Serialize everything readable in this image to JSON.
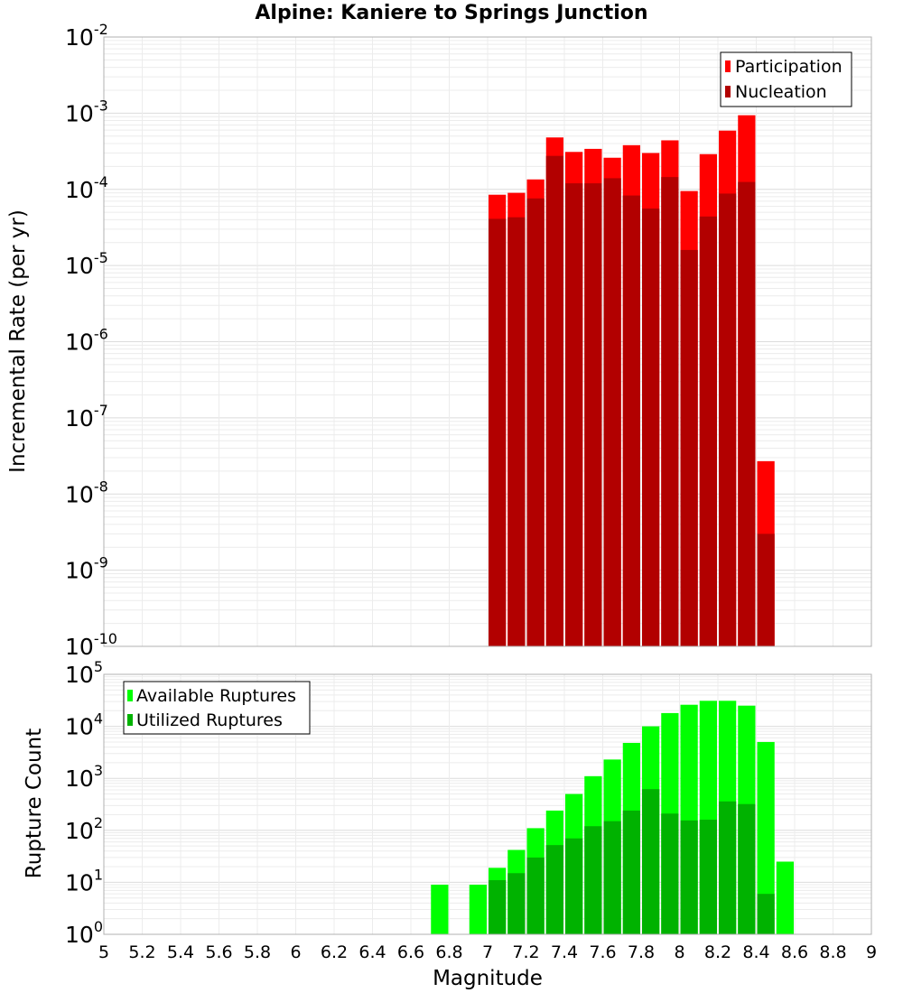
{
  "chart_data": [
    {
      "type": "bar",
      "title": "Alpine: Kaniere to Springs Junction",
      "ylabel": "Incremental Rate (per yr)",
      "yscale": "log",
      "ylim": [
        1e-10,
        0.01
      ],
      "xlim": [
        5,
        9
      ],
      "y_tick_exponents": [
        -10,
        -9,
        -8,
        -7,
        -6,
        -5,
        -4,
        -3,
        -2
      ],
      "bin_centers": [
        7.05,
        7.15,
        7.25,
        7.35,
        7.45,
        7.55,
        7.65,
        7.75,
        7.85,
        7.95,
        8.05,
        8.15,
        8.25,
        8.35,
        8.45
      ],
      "legend_position": "top-right",
      "grid": true,
      "series": [
        {
          "name": "Participation",
          "color": "#ff0000",
          "values": [
            8.5e-05,
            9e-05,
            0.000135,
            0.00048,
            0.00031,
            0.00034,
            0.00026,
            0.00038,
            0.0003,
            0.00044,
            9.5e-05,
            0.00029,
            0.00059,
            0.00094,
            2.7e-08
          ]
        },
        {
          "name": "Nucleation",
          "color": "#b20000",
          "values": [
            4.1e-05,
            4.3e-05,
            7.6e-05,
            0.000275,
            0.00012,
            0.00012,
            0.00014,
            8.3e-05,
            5.6e-05,
            0.000145,
            1.6e-05,
            4.4e-05,
            8.8e-05,
            0.000125,
            3e-09
          ]
        }
      ]
    },
    {
      "type": "bar",
      "xlabel": "Magnitude",
      "ylabel": "Rupture Count",
      "yscale": "log",
      "ylim": [
        1,
        100000
      ],
      "xlim": [
        5,
        9
      ],
      "x_ticks": [
        "5",
        "5.2",
        "5.4",
        "5.6",
        "5.8",
        "6",
        "6.2",
        "6.4",
        "6.6",
        "6.8",
        "7",
        "7.2",
        "7.4",
        "7.6",
        "7.8",
        "8",
        "8.2",
        "8.4",
        "8.6",
        "8.8",
        "9"
      ],
      "y_tick_exponents": [
        0,
        1,
        2,
        3,
        4,
        5
      ],
      "bin_centers": [
        6.75,
        6.95,
        7.05,
        7.15,
        7.25,
        7.35,
        7.45,
        7.55,
        7.65,
        7.75,
        7.85,
        7.95,
        8.05,
        8.15,
        8.25,
        8.35,
        8.45,
        8.55
      ],
      "legend_position": "top-left",
      "grid": true,
      "series": [
        {
          "name": "Available Ruptures",
          "color": "#00ff00",
          "values": [
            9,
            9,
            19,
            42,
            110,
            240,
            500,
            1100,
            2300,
            4800,
            10000,
            18000,
            26000,
            31000,
            31000,
            25000,
            5000,
            25
          ]
        },
        {
          "name": "Utilized Ruptures",
          "color": "#00b200",
          "values": [
            0,
            0,
            11,
            15,
            30,
            52,
            70,
            120,
            150,
            240,
            620,
            210,
            155,
            160,
            360,
            320,
            6,
            0
          ]
        }
      ]
    }
  ]
}
